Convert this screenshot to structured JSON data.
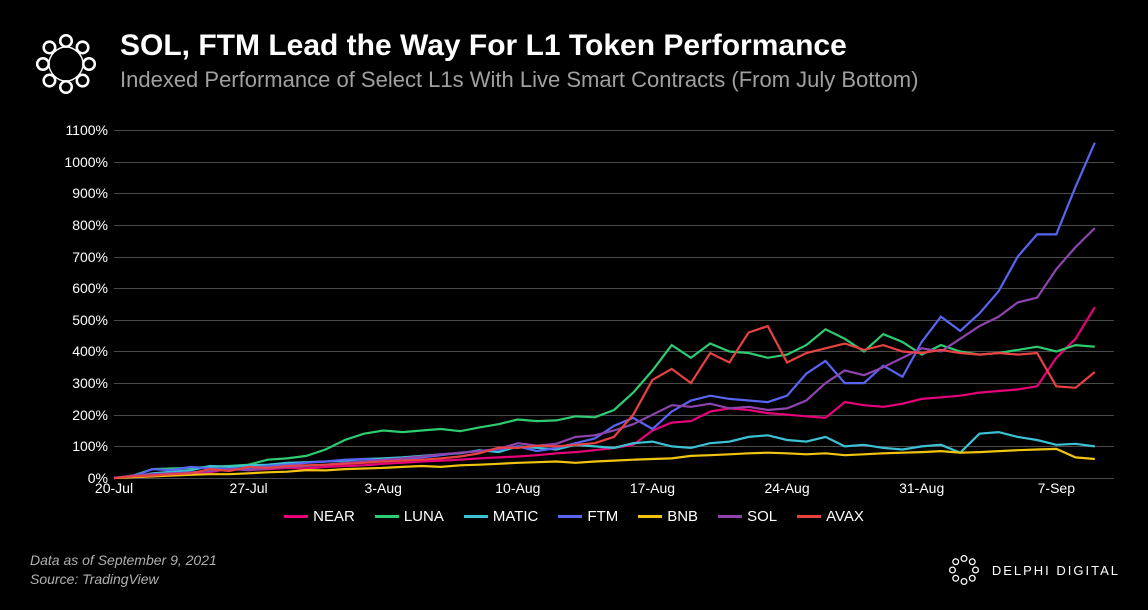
{
  "header": {
    "title": "SOL, FTM Lead the Way For L1 Token Performance",
    "subtitle": "Indexed Performance of Select L1s With Live Smart Contracts (From July Bottom)"
  },
  "chart": {
    "type": "line",
    "background_color": "#000000",
    "grid_color": "#4a4a4a",
    "text_color": "#ffffff",
    "line_width": 2.2,
    "ylim": [
      0,
      1100
    ],
    "ytick_step": 100,
    "yticks": [
      0,
      100,
      200,
      300,
      400,
      500,
      600,
      700,
      800,
      900,
      1000,
      1100
    ],
    "ytick_labels": [
      "0%",
      "100%",
      "200%",
      "300%",
      "400%",
      "500%",
      "600%",
      "700%",
      "800%",
      "900%",
      "1000%",
      "1100%"
    ],
    "xlim": [
      0,
      52
    ],
    "xticks": [
      0,
      7,
      14,
      21,
      28,
      35,
      42,
      49
    ],
    "xtick_labels": [
      "20-Jul",
      "27-Jul",
      "3-Aug",
      "10-Aug",
      "17-Aug",
      "24-Aug",
      "31-Aug",
      "7-Sep"
    ],
    "series": [
      {
        "name": "NEAR",
        "color": "#e6007a",
        "values": [
          0,
          5,
          8,
          12,
          15,
          18,
          30,
          25,
          28,
          32,
          30,
          35,
          38,
          40,
          45,
          48,
          52,
          55,
          58,
          62,
          65,
          68,
          72,
          78,
          82,
          88,
          95,
          105,
          150,
          175,
          180,
          210,
          220,
          215,
          205,
          200,
          195,
          190,
          240,
          230,
          225,
          235,
          250,
          255,
          260,
          270,
          275,
          280,
          290,
          380,
          440,
          540
        ]
      },
      {
        "name": "LUNA",
        "color": "#2ecc71",
        "values": [
          0,
          8,
          28,
          30,
          32,
          35,
          38,
          42,
          58,
          62,
          70,
          90,
          120,
          140,
          150,
          145,
          150,
          155,
          148,
          160,
          170,
          185,
          180,
          182,
          195,
          192,
          215,
          270,
          340,
          420,
          380,
          425,
          400,
          395,
          380,
          390,
          420,
          470,
          440,
          400,
          455,
          430,
          390,
          420,
          400,
          390,
          395,
          405,
          415,
          400,
          420,
          415
        ]
      },
      {
        "name": "MATIC",
        "color": "#3bc1d3",
        "values": [
          0,
          5,
          15,
          20,
          25,
          38,
          35,
          40,
          42,
          48,
          50,
          52,
          55,
          60,
          62,
          65,
          70,
          75,
          78,
          88,
          82,
          100,
          95,
          90,
          105,
          100,
          95,
          110,
          115,
          100,
          95,
          110,
          115,
          130,
          135,
          120,
          115,
          130,
          100,
          105,
          95,
          90,
          100,
          105,
          80,
          140,
          145,
          130,
          120,
          105,
          108,
          100
        ]
      },
      {
        "name": "FTM",
        "color": "#5865f2",
        "values": [
          0,
          5,
          28,
          25,
          35,
          30,
          28,
          32,
          38,
          42,
          48,
          52,
          58,
          60,
          55,
          58,
          65,
          72,
          80,
          85,
          90,
          100,
          85,
          95,
          110,
          125,
          165,
          190,
          155,
          210,
          245,
          260,
          250,
          245,
          240,
          260,
          330,
          370,
          300,
          300,
          355,
          320,
          430,
          510,
          465,
          520,
          590,
          700,
          770,
          770,
          920,
          1060
        ]
      },
      {
        "name": "BNB",
        "color": "#f1c40f",
        "values": [
          0,
          3,
          5,
          8,
          10,
          12,
          12,
          15,
          18,
          20,
          25,
          24,
          28,
          30,
          32,
          35,
          38,
          35,
          40,
          42,
          45,
          48,
          50,
          52,
          48,
          52,
          55,
          58,
          60,
          62,
          70,
          72,
          75,
          78,
          80,
          78,
          75,
          78,
          72,
          75,
          78,
          80,
          82,
          85,
          80,
          82,
          85,
          88,
          90,
          92,
          65,
          60
        ]
      },
      {
        "name": "SOL",
        "color": "#8e44ad",
        "values": [
          0,
          8,
          12,
          15,
          18,
          22,
          28,
          25,
          30,
          35,
          38,
          42,
          48,
          52,
          58,
          62,
          68,
          75,
          80,
          85,
          92,
          110,
          102,
          108,
          130,
          135,
          150,
          170,
          200,
          230,
          225,
          235,
          220,
          225,
          215,
          220,
          245,
          300,
          340,
          325,
          350,
          380,
          410,
          400,
          440,
          480,
          510,
          555,
          570,
          660,
          730,
          790
        ]
      },
      {
        "name": "AVAX",
        "color": "#e84142",
        "values": [
          0,
          5,
          8,
          12,
          15,
          28,
          22,
          35,
          32,
          38,
          40,
          42,
          45,
          48,
          52,
          55,
          58,
          62,
          68,
          78,
          96,
          95,
          102,
          100,
          105,
          110,
          130,
          200,
          310,
          345,
          300,
          395,
          365,
          460,
          480,
          365,
          395,
          410,
          425,
          405,
          420,
          400,
          395,
          405,
          395,
          390,
          395,
          390,
          395,
          290,
          285,
          335
        ]
      }
    ]
  },
  "legend": {
    "items": [
      "NEAR",
      "LUNA",
      "MATIC",
      "FTM",
      "BNB",
      "SOL",
      "AVAX"
    ]
  },
  "footer": {
    "line1": "Data as of September 9, 2021",
    "line2": "Source: TradingView",
    "brand": "DELPHI DIGITAL"
  }
}
